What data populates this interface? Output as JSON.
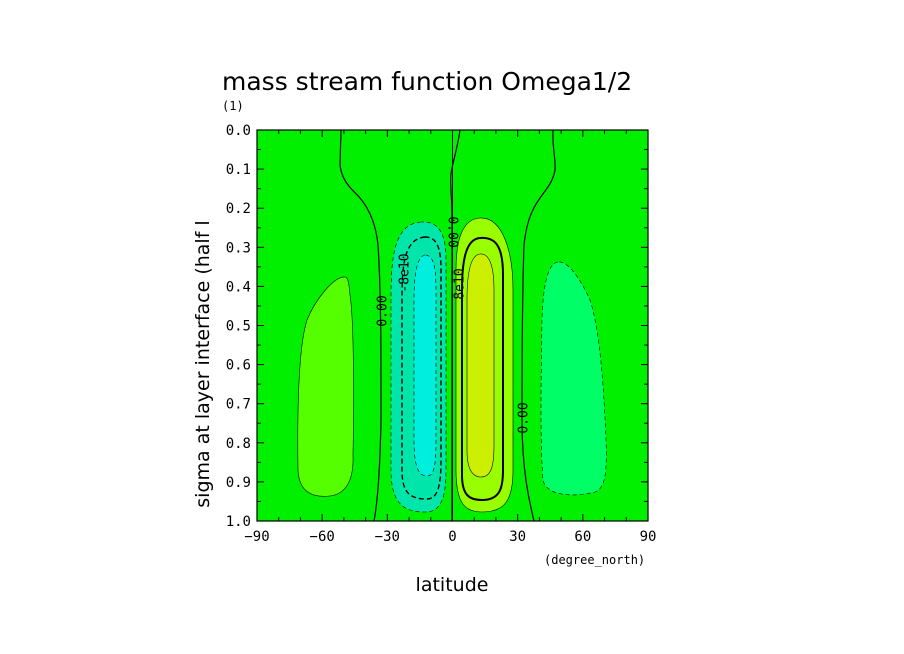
{
  "chart_data": {
    "type": "contour",
    "title": "mass stream function Omega1/2",
    "subtitle": "(1)",
    "xlabel": "latitude",
    "xunits": "(degree_north)",
    "ylabel": "sigma at layer interface (half l",
    "xlim": [
      -90,
      90
    ],
    "ylim": [
      1.0,
      0.0
    ],
    "x_ticks": [
      -90,
      -60,
      -30,
      0,
      30,
      60,
      90
    ],
    "x_tick_labels": [
      "−90",
      "−60",
      "−30",
      "0",
      "30",
      "60",
      "90"
    ],
    "y_ticks": [
      0.0,
      0.1,
      0.2,
      0.3,
      0.4,
      0.5,
      0.6,
      0.7,
      0.8,
      0.9,
      1.0
    ],
    "y_tick_labels": [
      "0.0",
      "0.1",
      "0.2",
      "0.3",
      "0.4",
      "0.5",
      "0.6",
      "0.7",
      "0.8",
      "0.9",
      "1.0"
    ],
    "contour_labels": [
      {
        "text": "0.00",
        "x": -35,
        "y": 0.46
      },
      {
        "text": "-8e10",
        "x": -21,
        "y": 0.36
      },
      {
        "text": "0.00",
        "x": -0.5,
        "y": 0.25
      },
      {
        "text": "8e10",
        "x": 3,
        "y": 0.4
      },
      {
        "text": "0.00",
        "x": 32,
        "y": 0.74
      }
    ],
    "colors": {
      "background": "#00f000",
      "cell_sh_north": "#55ff00",
      "cell_sh_south": "#00ff66",
      "neg_inner": "#00e6aa",
      "neg_core": "#00eedd",
      "pos_inner": "#99ff00",
      "pos_core": "#ccee00"
    }
  }
}
